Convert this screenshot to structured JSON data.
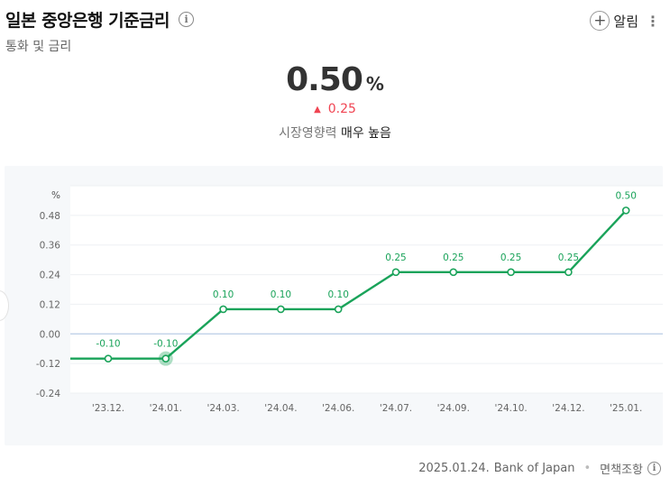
{
  "header": {
    "title": "일본 중앙은행 기준금리",
    "subtitle": "통화 및 금리",
    "alarm_label": "알림"
  },
  "hero": {
    "value": "0.50",
    "unit": "%",
    "change": "0.25",
    "impact_label": "시장영향력",
    "impact_value": "매우 높음"
  },
  "colors": {
    "line": "#1aa35a",
    "up": "#f04452",
    "baseline": "#b9cde6",
    "label": "#1aa35a"
  },
  "chart_data": {
    "type": "line",
    "ylabel": "%",
    "x": [
      "'23.12.",
      "'24.01.",
      "'24.03.",
      "'24.04.",
      "'24.06.",
      "'24.07.",
      "'24.09.",
      "'24.10.",
      "'24.12.",
      "'25.01."
    ],
    "series": [
      {
        "values": [
          -0.1,
          -0.1,
          0.1,
          0.1,
          0.1,
          0.25,
          0.25,
          0.25,
          0.25,
          0.5
        ]
      }
    ],
    "data_labels": [
      "-0.10",
      "-0.10",
      "0.10",
      "0.10",
      "0.10",
      "0.25",
      "0.25",
      "0.25",
      "0.25",
      "0.50"
    ],
    "yticks": [
      0.48,
      0.36,
      0.24,
      0.12,
      0.0,
      -0.12,
      -0.24
    ],
    "ytick_labels": [
      "0.48",
      "0.36",
      "0.24",
      "0.12",
      "0.00",
      "-0.12",
      "-0.24"
    ],
    "ylim": [
      -0.24,
      0.6
    ],
    "highlight_index": 1,
    "grid": true
  },
  "footer": {
    "date": "2025.01.24.",
    "source": "Bank of Japan",
    "disclaimer": "면책조항"
  }
}
